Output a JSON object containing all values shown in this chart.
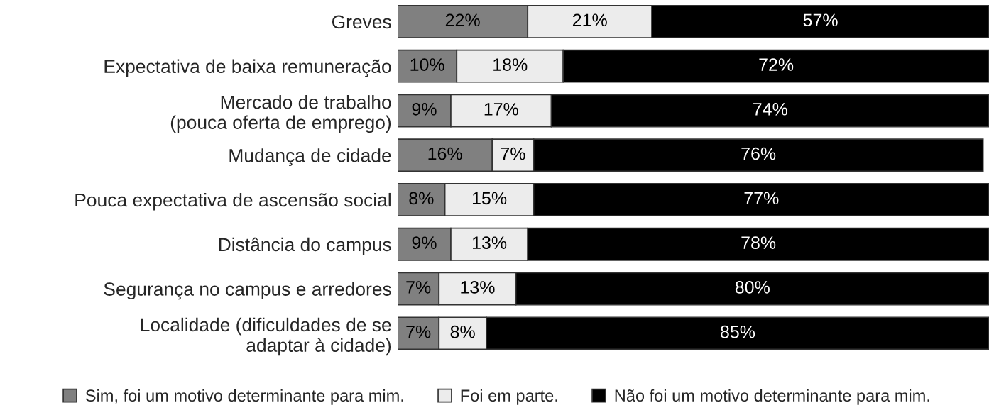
{
  "chart_data": {
    "type": "bar",
    "orientation": "horizontal",
    "stacked": true,
    "legend": "bottom",
    "categories": [
      "Greves",
      "Expectativa de baixa remuneração",
      "Mercado de trabalho\n(pouca oferta de emprego)",
      "Mudança de cidade",
      "Pouca expectativa de ascensão social",
      "Distância do campus",
      "Segurança no campus e arredores",
      "Localidade (dificuldades de se\nadaptar à cidade)"
    ],
    "series": [
      {
        "name": "Sim, foi um motivo determinante para mim.",
        "color": "#808080",
        "values": [
          22,
          10,
          9,
          16,
          8,
          9,
          7,
          7
        ],
        "value_labels": [
          "22%",
          "10%",
          "9%",
          "16%",
          "8%",
          "9%",
          "7%",
          "7%"
        ]
      },
      {
        "name": "Foi em parte.",
        "color": "#ececec",
        "values": [
          21,
          18,
          17,
          7,
          15,
          13,
          13,
          8
        ],
        "value_labels": [
          "21%",
          "18%",
          "17%",
          "7%",
          "15%",
          "13%",
          "13%",
          "8%"
        ]
      },
      {
        "name": "Não foi um motivo determinante para mim.",
        "color": "#000000",
        "values": [
          57,
          72,
          74,
          76,
          77,
          78,
          80,
          85
        ],
        "value_labels": [
          "57%",
          "72%",
          "74%",
          "76%",
          "77%",
          "78%",
          "80%",
          "85%"
        ]
      }
    ]
  }
}
